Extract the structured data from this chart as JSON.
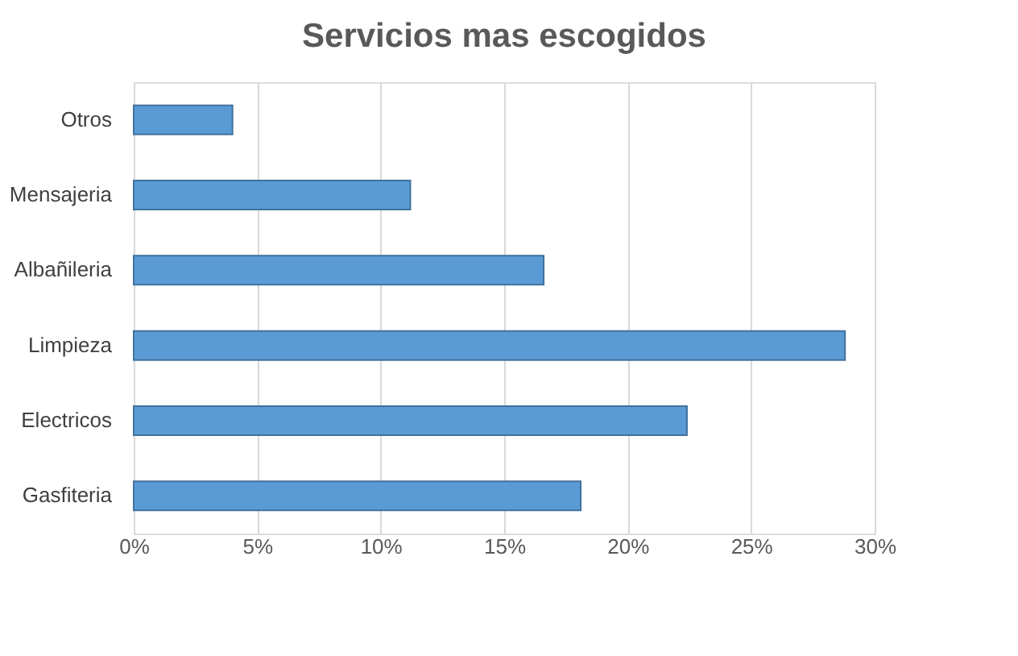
{
  "chart_data": {
    "type": "bar",
    "orientation": "horizontal",
    "title": "Servicios mas escogidos",
    "categories": [
      "Otros",
      "Mensajeria",
      "Albañileria",
      "Limpieza",
      "Electricos",
      "Gasfiteria"
    ],
    "values": [
      4,
      11.2,
      16.6,
      28.8,
      22.4,
      18.1
    ],
    "color": "#5b9bd5",
    "xlim": [
      0,
      30
    ],
    "xticks": [
      {
        "value": 0,
        "label": "0%"
      },
      {
        "value": 5,
        "label": "5%"
      },
      {
        "value": 10,
        "label": "10%"
      },
      {
        "value": 15,
        "label": "15%"
      },
      {
        "value": 20,
        "label": "20%"
      },
      {
        "value": 25,
        "label": "25%"
      },
      {
        "value": 30,
        "label": "30%"
      }
    ],
    "grid": "x"
  }
}
